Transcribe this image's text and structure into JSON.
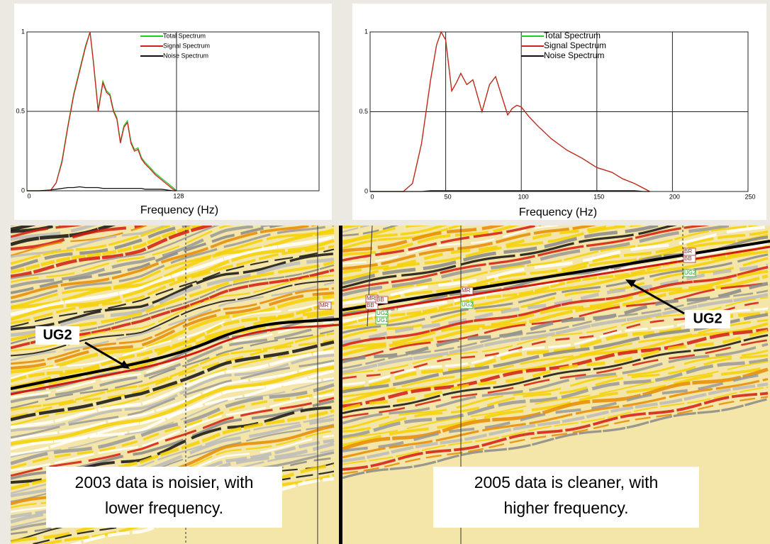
{
  "chart_data": [
    {
      "type": "line",
      "xlabel": "Frequency (Hz)",
      "xlim": [
        0,
        250
      ],
      "xticks": [
        0,
        128
      ],
      "ylim": [
        0,
        1
      ],
      "yticks": [
        0,
        0.5,
        1
      ],
      "grid": true,
      "legend": "top",
      "x": [
        0,
        10,
        20,
        25,
        30,
        35,
        40,
        45,
        50,
        54,
        57,
        61,
        65,
        68,
        71,
        74,
        77,
        80,
        83,
        86,
        89,
        92,
        95,
        98,
        101,
        105,
        110,
        115,
        120,
        125,
        128
      ],
      "series": [
        {
          "name": "Total Spectrum",
          "color": "#22cc22",
          "values": [
            0,
            0,
            0,
            0.05,
            0.19,
            0.41,
            0.61,
            0.76,
            0.91,
            1,
            0.81,
            0.51,
            0.69,
            0.63,
            0.61,
            0.51,
            0.46,
            0.31,
            0.41,
            0.44,
            0.31,
            0.26,
            0.27,
            0.21,
            0.18,
            0.15,
            0.11,
            0.08,
            0.05,
            0.02,
            0
          ]
        },
        {
          "name": "Signal Spectrum",
          "color": "#cc2222",
          "values": [
            0,
            0,
            0,
            0.05,
            0.18,
            0.4,
            0.6,
            0.75,
            0.9,
            1,
            0.8,
            0.5,
            0.68,
            0.62,
            0.6,
            0.5,
            0.45,
            0.3,
            0.4,
            0.43,
            0.3,
            0.25,
            0.26,
            0.2,
            0.17,
            0.14,
            0.1,
            0.07,
            0.04,
            0.01,
            0
          ]
        },
        {
          "name": "Noise Spectrum",
          "color": "#111111",
          "values": [
            0,
            0,
            0.005,
            0.01,
            0.015,
            0.02,
            0.02,
            0.025,
            0.02,
            0.02,
            0.02,
            0.02,
            0.015,
            0.015,
            0.015,
            0.015,
            0.015,
            0.015,
            0.015,
            0.015,
            0.015,
            0.015,
            0.015,
            0.015,
            0.01,
            0.01,
            0.01,
            0.01,
            0.005,
            0,
            0
          ]
        }
      ]
    },
    {
      "type": "line",
      "xlabel": "Frequency (Hz)",
      "xlim": [
        0,
        250
      ],
      "xticks": [
        0,
        50,
        100,
        150,
        200,
        250
      ],
      "ylim": [
        0,
        1
      ],
      "yticks": [
        0,
        0.5,
        1
      ],
      "grid": true,
      "legend": "top",
      "x": [
        0,
        15,
        22,
        28,
        34,
        40,
        44,
        47,
        50,
        54,
        57,
        60,
        64,
        68,
        74,
        79,
        83,
        87,
        91,
        94,
        97,
        100,
        105,
        111,
        120,
        130,
        140,
        150,
        160,
        167,
        175,
        181,
        185
      ],
      "series": [
        {
          "name": "Total Spectrum",
          "color": "#22cc22",
          "values": [
            0,
            0,
            0,
            0.05,
            0.3,
            0.7,
            0.92,
            1,
            0.95,
            0.63,
            0.68,
            0.74,
            0.67,
            0.7,
            0.5,
            0.67,
            0.72,
            0.6,
            0.48,
            0.52,
            0.54,
            0.53,
            0.47,
            0.41,
            0.33,
            0.26,
            0.21,
            0.15,
            0.12,
            0.08,
            0.05,
            0.02,
            0
          ]
        },
        {
          "name": "Signal Spectrum",
          "color": "#cc2222",
          "values": [
            0,
            0,
            0,
            0.05,
            0.3,
            0.7,
            0.92,
            1,
            0.95,
            0.63,
            0.68,
            0.74,
            0.67,
            0.7,
            0.5,
            0.67,
            0.72,
            0.6,
            0.48,
            0.52,
            0.54,
            0.53,
            0.47,
            0.41,
            0.33,
            0.26,
            0.21,
            0.15,
            0.12,
            0.08,
            0.05,
            0.02,
            0
          ]
        },
        {
          "name": "Noise Spectrum",
          "color": "#111111",
          "values": [
            0,
            0,
            0,
            0,
            0,
            0.005,
            0.005,
            0.005,
            0.005,
            0.005,
            0.005,
            0.005,
            0.005,
            0.005,
            0.005,
            0.005,
            0.005,
            0.005,
            0.005,
            0.005,
            0.005,
            0.005,
            0.005,
            0.005,
            0.005,
            0.005,
            0.005,
            0.005,
            0.005,
            0.005,
            0.005,
            0,
            0
          ]
        }
      ]
    }
  ],
  "seismic": {
    "left": {
      "annotation": "UG2",
      "caption_lines": [
        "2003 data is noisier, with",
        "lower frequency."
      ],
      "horizon_labels": [
        "MR"
      ]
    },
    "right": {
      "annotation": "UG2",
      "caption_lines": [
        "2005 data is cleaner, with",
        "higher frequency."
      ],
      "horizon_labels": [
        "MR",
        "BB",
        "BB",
        "UG2",
        "UG1",
        "MR",
        "UG2",
        "BR",
        "BB",
        "UG2"
      ]
    }
  }
}
